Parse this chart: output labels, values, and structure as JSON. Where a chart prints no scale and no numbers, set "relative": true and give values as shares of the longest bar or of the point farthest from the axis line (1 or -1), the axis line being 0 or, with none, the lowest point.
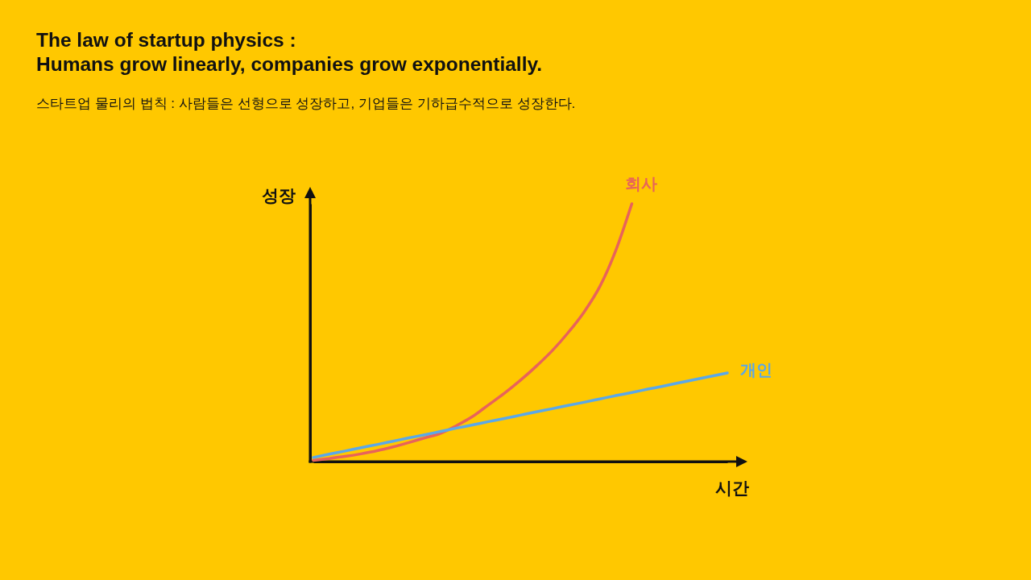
{
  "chart_data": {
    "type": "line",
    "title": "The law of startup physics :\nHumans grow linearly, companies grow exponentially.",
    "subtitle": "스타트업 물리의 법칙 : 사람들은 선형으로 성장하고, 기업들은 기하급수적으로 성장한다.",
    "xlabel": "시간",
    "ylabel": "성장",
    "relative": true,
    "categories": [
      null,
      null,
      null,
      null,
      null,
      null,
      null,
      null,
      null,
      null,
      null,
      null,
      null,
      null,
      null,
      null,
      null,
      null,
      null,
      null,
      null,
      null,
      null,
      null,
      null,
      null,
      null
    ],
    "series": [
      {
        "name": "회사",
        "color": "#e8635a",
        "values": [
          0.005,
          0.012,
          0.02,
          0.03,
          0.042,
          0.057,
          0.074,
          0.092,
          0.11,
          0.14,
          0.175,
          0.22,
          0.265,
          0.315,
          0.37,
          0.43,
          0.5,
          0.58,
          0.68,
          0.82,
          1,
          null,
          null,
          null,
          null,
          null,
          null
        ]
      },
      {
        "name": "개인",
        "color": "#5ba8e8",
        "values": [
          0.016,
          0.029,
          0.041,
          0.054,
          0.066,
          0.079,
          0.092,
          0.104,
          0.117,
          0.13,
          0.142,
          0.155,
          0.167,
          0.18,
          0.193,
          0.205,
          0.218,
          0.23,
          0.243,
          0.256,
          0.268,
          0.281,
          0.293,
          0.306,
          0.319,
          0.331,
          0.344
        ]
      }
    ]
  }
}
